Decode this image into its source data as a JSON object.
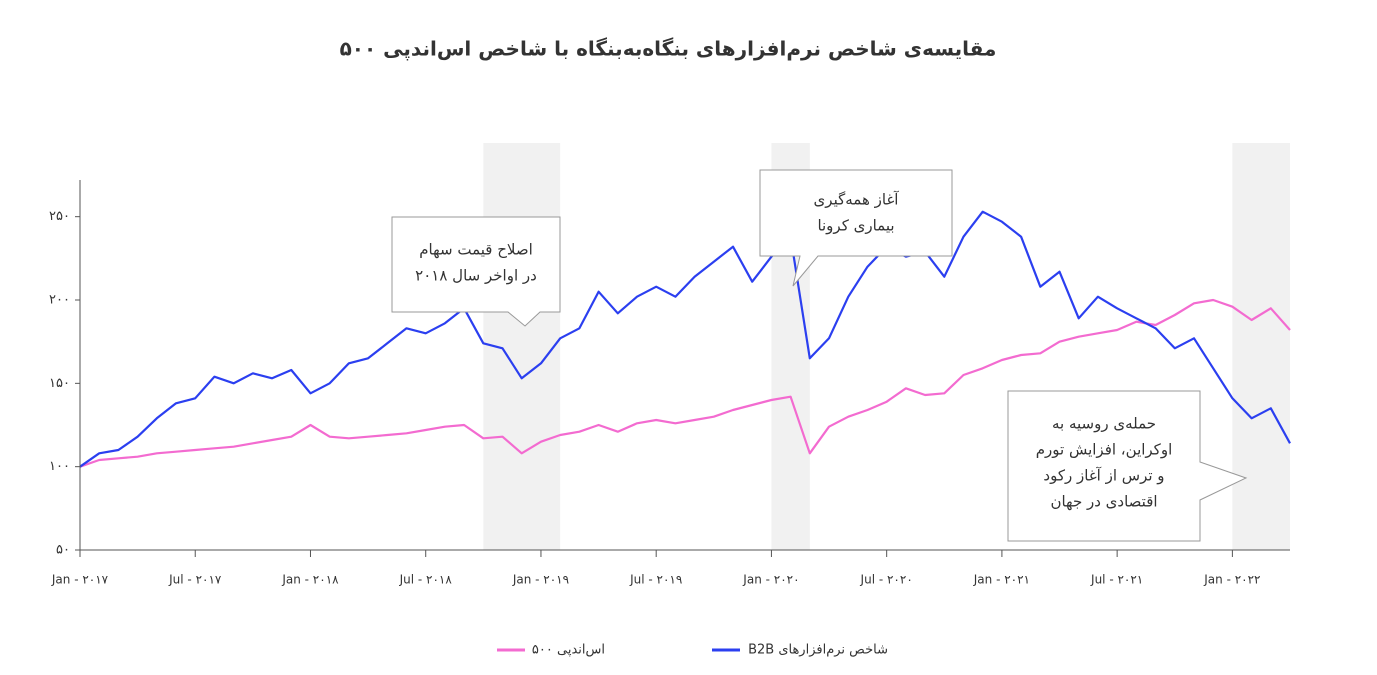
{
  "chart_data": {
    "type": "line",
    "title": "مقایسه‌ی شاخص نرم‌افزارهای بنگاه‌به‌بنگاه با شاخص اس‌اندپی ۵۰۰",
    "x": [
      "2017-01",
      "2017-02",
      "2017-03",
      "2017-04",
      "2017-05",
      "2017-06",
      "2017-07",
      "2017-08",
      "2017-09",
      "2017-10",
      "2017-11",
      "2017-12",
      "2018-01",
      "2018-02",
      "2018-03",
      "2018-04",
      "2018-05",
      "2018-06",
      "2018-07",
      "2018-08",
      "2018-09",
      "2018-10",
      "2018-11",
      "2018-12",
      "2019-01",
      "2019-02",
      "2019-03",
      "2019-04",
      "2019-05",
      "2019-06",
      "2019-07",
      "2019-08",
      "2019-09",
      "2019-10",
      "2019-11",
      "2019-12",
      "2020-01",
      "2020-02",
      "2020-03",
      "2020-04",
      "2020-05",
      "2020-06",
      "2020-07",
      "2020-08",
      "2020-09",
      "2020-10",
      "2020-11",
      "2020-12",
      "2021-01",
      "2021-02",
      "2021-03",
      "2021-04",
      "2021-05",
      "2021-06",
      "2021-07",
      "2021-08",
      "2021-09",
      "2021-10",
      "2021-11",
      "2021-12",
      "2022-01",
      "2022-02",
      "2022-03",
      "2022-04"
    ],
    "series": [
      {
        "name": "اس‌اندپی ۵۰۰",
        "color": "#f36bd0",
        "values": [
          100,
          104,
          105,
          106,
          108,
          109,
          110,
          111,
          112,
          114,
          116,
          118,
          125,
          118,
          117,
          118,
          119,
          120,
          122,
          124,
          125,
          117,
          118,
          108,
          115,
          119,
          121,
          125,
          121,
          126,
          128,
          126,
          128,
          130,
          134,
          137,
          140,
          142,
          108,
          124,
          130,
          134,
          139,
          147,
          143,
          144,
          155,
          159,
          164,
          167,
          168,
          175,
          178,
          180,
          182,
          187,
          185,
          191,
          198,
          200,
          196,
          188,
          195,
          182
        ]
      },
      {
        "name": "شاخص نرم‌افزارهای B2B",
        "color": "#2b3ff0",
        "values": [
          100,
          108,
          110,
          118,
          129,
          138,
          141,
          154,
          150,
          156,
          153,
          158,
          144,
          150,
          162,
          165,
          174,
          183,
          180,
          186,
          195,
          174,
          171,
          153,
          162,
          177,
          183,
          205,
          192,
          202,
          208,
          202,
          214,
          223,
          232,
          211,
          226,
          238,
          165,
          177,
          202,
          220,
          232,
          226,
          229,
          214,
          238,
          253,
          247,
          238,
          208,
          217,
          189,
          202,
          195,
          189,
          183,
          171,
          177,
          159,
          141,
          129,
          135,
          114
        ]
      }
    ],
    "xlim": [
      "2017-01",
      "2022-04"
    ],
    "xticks": [
      {
        "value": "2017-01",
        "label": "Jan - ۲۰۱۷"
      },
      {
        "value": "2017-07",
        "label": "Jul - ۲۰۱۷"
      },
      {
        "value": "2018-01",
        "label": "Jan - ۲۰۱۸"
      },
      {
        "value": "2018-07",
        "label": "Jul - ۲۰۱۸"
      },
      {
        "value": "2019-01",
        "label": "Jan - ۲۰۱۹"
      },
      {
        "value": "2019-07",
        "label": "Jul - ۲۰۱۹"
      },
      {
        "value": "2020-01",
        "label": "Jan - ۲۰۲۰"
      },
      {
        "value": "2020-07",
        "label": "Jul - ۲۰۲۰"
      },
      {
        "value": "2021-01",
        "label": "Jan - ۲۰۲۱"
      },
      {
        "value": "2021-07",
        "label": "Jul - ۲۰۲۱"
      },
      {
        "value": "2022-01",
        "label": "Jan - ۲۰۲۲"
      }
    ],
    "ylim": [
      50,
      272
    ],
    "yticks": [
      {
        "value": 50,
        "label": "۵۰"
      },
      {
        "value": 100,
        "label": "۱۰۰"
      },
      {
        "value": 150,
        "label": "۱۵۰"
      },
      {
        "value": 200,
        "label": "۲۰۰"
      },
      {
        "value": 250,
        "label": "۲۵۰"
      }
    ],
    "shaded_ranges": [
      [
        "2018-10",
        "2019-02"
      ],
      [
        "2020-01",
        "2020-03"
      ],
      [
        "2022-01",
        "2022-04"
      ]
    ],
    "annotations": [
      {
        "lines": [
          "اصلاح قیمت سهام",
          "در اواخر سال ۲۰۱۸"
        ]
      },
      {
        "lines": [
          "آغاز همه‌گیری",
          "بیماری کرونا"
        ]
      },
      {
        "lines": [
          "حمله‌ی روسیه به",
          "اوکراین، افزایش تورم",
          "و ترس از آغاز رکود",
          "اقتصادی در جهان"
        ]
      }
    ]
  }
}
